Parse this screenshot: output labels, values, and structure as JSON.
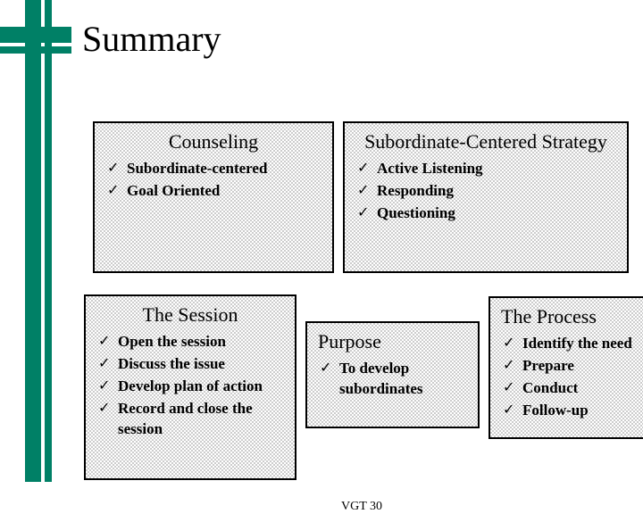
{
  "slide": {
    "title": "Summary",
    "footer": "VGT 30"
  },
  "style": {
    "accent_color": "#008066",
    "box_border_color": "#000000",
    "dither_light": "#ffffff",
    "dither_dark": "#cccccc",
    "title_fontsize_pt": 30,
    "box_title_fontsize_pt": 17,
    "item_fontsize_pt": 13,
    "bullet_glyph": "✓"
  },
  "boxes": {
    "counseling": {
      "title": "Counseling",
      "items": [
        "Subordinate-centered",
        "Goal Oriented"
      ]
    },
    "strategy": {
      "title": "Subordinate-Centered Strategy",
      "items": [
        "Active Listening",
        "Responding",
        "Questioning"
      ]
    },
    "session": {
      "title": "The Session",
      "items": [
        "Open the session",
        "Discuss the issue",
        "Develop plan of action",
        "Record and close the session"
      ]
    },
    "purpose": {
      "title": "Purpose",
      "items": [
        "To develop subordinates"
      ]
    },
    "process": {
      "title": "The Process",
      "items": [
        "Identify the need",
        "Prepare",
        "Conduct",
        "Follow-up"
      ]
    }
  }
}
